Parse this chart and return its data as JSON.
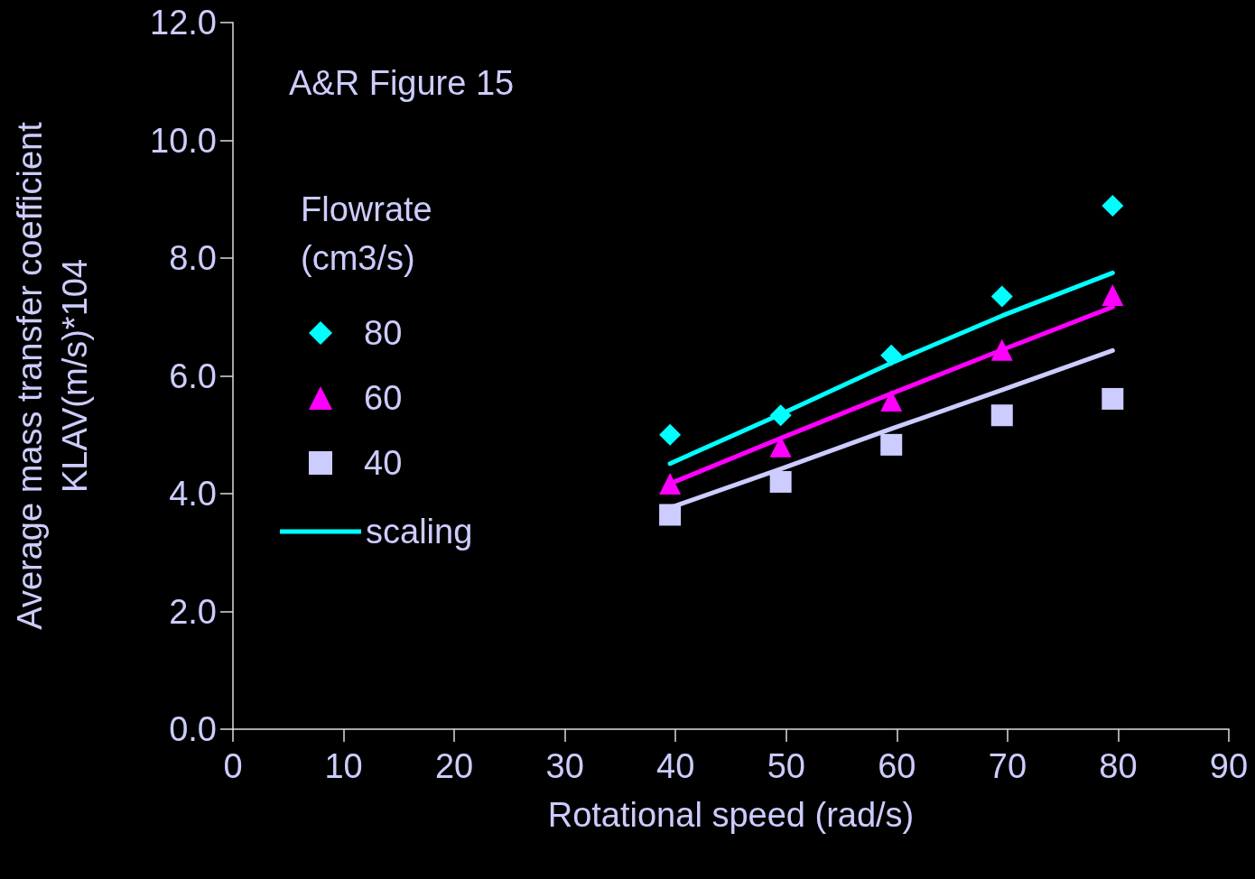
{
  "chart_data": {
    "type": "scatter",
    "xlabel": "Rotational speed (rad/s)",
    "ylabel": "Average mass transfer coefficient\nKLAV(m/s)*104",
    "legend_title": "Flowrate\n(cm3/s)",
    "annotations": [
      "A&R Figure 15"
    ],
    "xlim": [
      0,
      90
    ],
    "xticks": [
      0,
      10,
      20,
      30,
      40,
      50,
      60,
      70,
      80,
      90
    ],
    "ylim": [
      0,
      12
    ],
    "yticks": [
      {
        "value": 0,
        "label": "0.0"
      },
      {
        "value": 2,
        "label": "2.0"
      },
      {
        "value": 4,
        "label": "4.0"
      },
      {
        "value": 6,
        "label": "6.0"
      },
      {
        "value": 8,
        "label": "8.0"
      },
      {
        "value": 10,
        "label": "10.0"
      },
      {
        "value": 12,
        "label": "12.0"
      }
    ],
    "grid": false,
    "legend": "left",
    "series": [
      {
        "name": "80",
        "marker": "diamond",
        "color": "#00ffff",
        "x": [
          39.5,
          49.5,
          59.5,
          69.5,
          79.5
        ],
        "values": [
          5.0,
          5.33,
          6.35,
          7.35,
          8.89
        ]
      },
      {
        "name": "60",
        "marker": "triangle",
        "color": "#ff00ff",
        "x": [
          39.5,
          49.5,
          59.5,
          69.5,
          79.5
        ],
        "values": [
          4.17,
          4.8,
          5.58,
          6.44,
          7.37
        ]
      },
      {
        "name": "40",
        "marker": "square",
        "color": "#ccccff",
        "x": [
          39.5,
          49.5,
          59.5,
          69.5,
          79.5
        ],
        "values": [
          3.64,
          4.2,
          4.83,
          5.33,
          5.61
        ]
      },
      {
        "name": "scaling",
        "type": "line",
        "marker": "none",
        "color": "#00ffff",
        "x": [
          39.5,
          49.5,
          59.5,
          69.5,
          79.5
        ],
        "values": [
          4.51,
          5.35,
          6.22,
          7.02,
          7.75
        ]
      },
      {
        "type": "line",
        "marker": "none",
        "color": "#ff00ff",
        "x": [
          39.5,
          49.5,
          59.5,
          69.5,
          79.5
        ],
        "values": [
          4.17,
          4.94,
          5.7,
          6.44,
          7.17
        ]
      },
      {
        "type": "line",
        "marker": "none",
        "color": "#ccccff",
        "x": [
          39.5,
          49.5,
          59.5,
          69.5,
          79.5
        ],
        "values": [
          3.76,
          4.42,
          5.1,
          5.76,
          6.43
        ]
      }
    ]
  }
}
